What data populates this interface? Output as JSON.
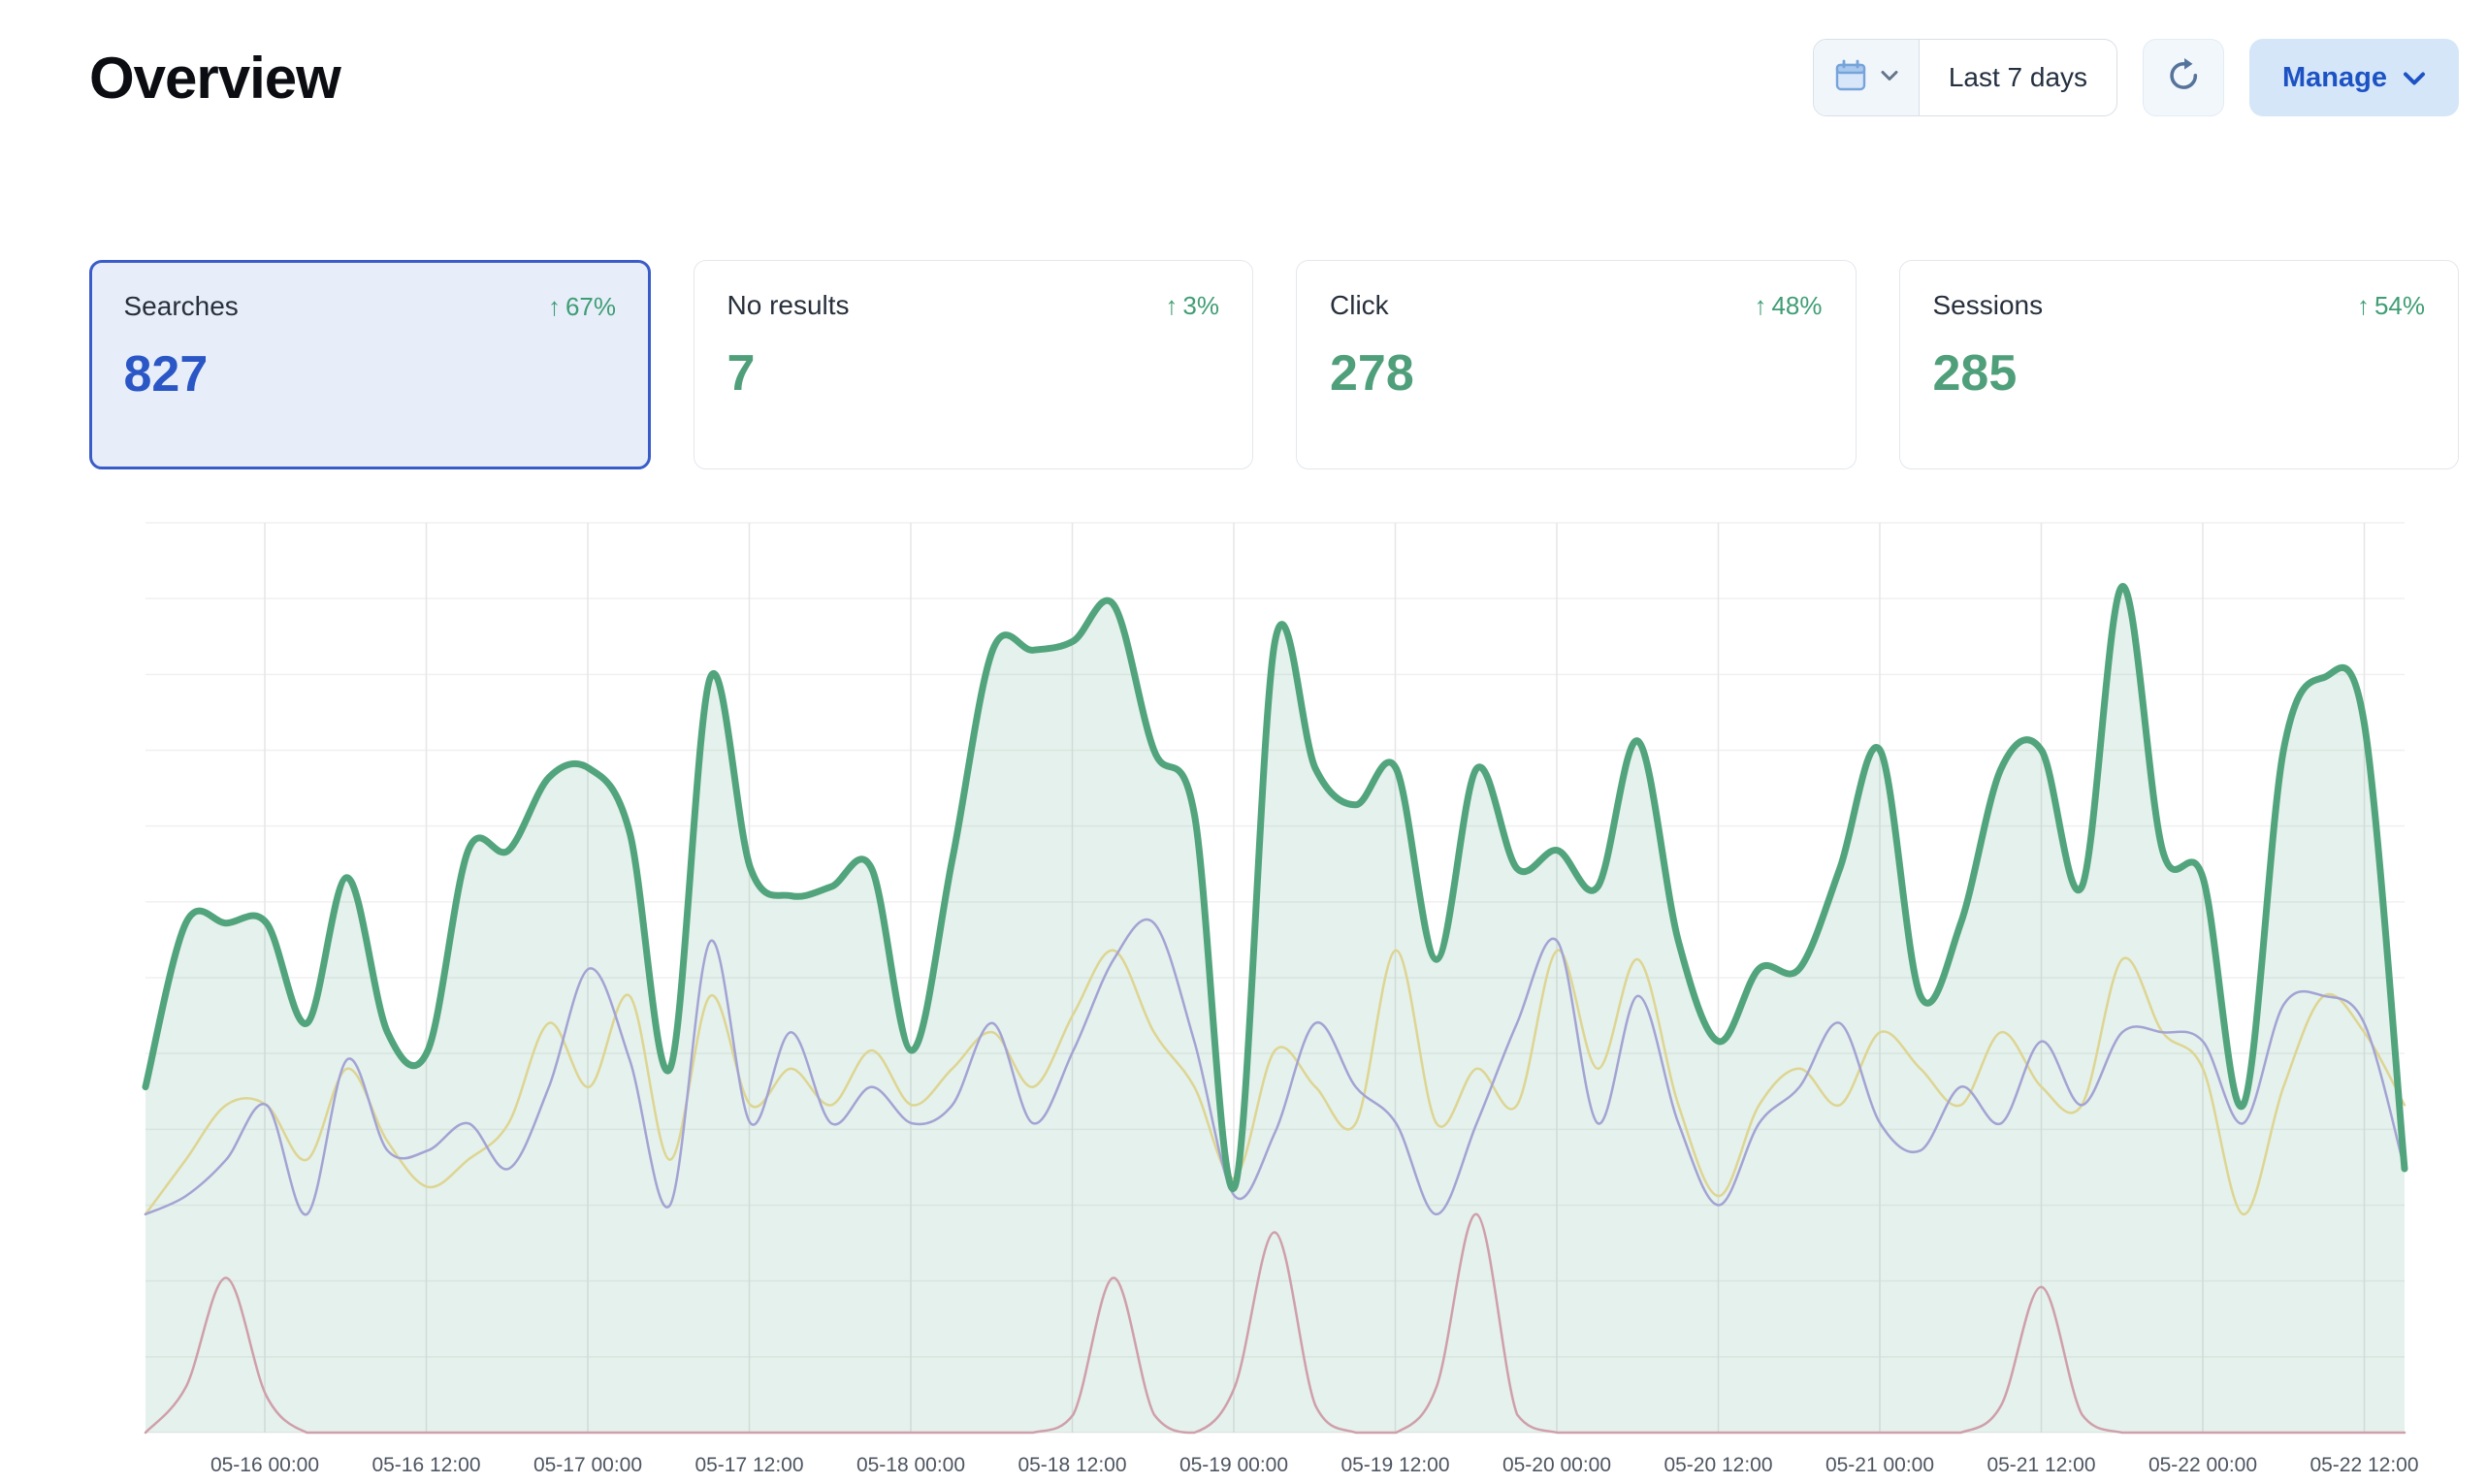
{
  "page": {
    "title": "Overview"
  },
  "toolbar": {
    "date_range": "Last 7 days",
    "manage_label": "Manage"
  },
  "icons": {
    "trend_up": "↑"
  },
  "colors": {
    "accent_blue": "#2a56c6",
    "selected_card_bg": "#e7eefa",
    "selected_card_border": "#3a5cc9",
    "positive_green": "#3f9d74",
    "metric_green": "#4f9f7a",
    "manage_bg": "#d5e6f8",
    "manage_text": "#1d52c4"
  },
  "cards": [
    {
      "label": "Searches",
      "arrow": "↑",
      "delta": "67%",
      "value": "827",
      "selected": true
    },
    {
      "label": "No results",
      "arrow": "↑",
      "delta": "3%",
      "value": "7",
      "selected": false
    },
    {
      "label": "Click",
      "arrow": "↑",
      "delta": "48%",
      "value": "278",
      "selected": false
    },
    {
      "label": "Sessions",
      "arrow": "↑",
      "delta": "54%",
      "value": "285",
      "selected": false
    }
  ],
  "chart_data": {
    "type": "area",
    "title": "",
    "xlabel": "",
    "ylabel": "",
    "ylim": [
      0,
      100
    ],
    "grid": true,
    "legend_position": "none",
    "x_tick_labels": [
      "05-16 00:00",
      "05-16 12:00",
      "05-17 00:00",
      "05-17 12:00",
      "05-18 00:00",
      "05-18 12:00",
      "05-19 00:00",
      "05-19 12:00",
      "05-20 00:00",
      "05-20 12:00",
      "05-21 00:00",
      "05-21 12:00",
      "05-22 00:00",
      "05-22 12:00"
    ],
    "series": [
      {
        "name": "No results",
        "color": "#cf9fab",
        "width": 2.5,
        "values": [
          0,
          5,
          17,
          4,
          0,
          0,
          0,
          0,
          0,
          0,
          0,
          0,
          0,
          0,
          0,
          0,
          0,
          0,
          0,
          0,
          0,
          0,
          0,
          2,
          17,
          2,
          0,
          5,
          22,
          3,
          0,
          0,
          5,
          24,
          2,
          0,
          0,
          0,
          0,
          0,
          0,
          0,
          0,
          0,
          0,
          0,
          3,
          16,
          2,
          0,
          0,
          0,
          0,
          0,
          0,
          0,
          0
        ]
      },
      {
        "name": "Click",
        "color": "#ddd592",
        "width": 2.5,
        "values": [
          24,
          30,
          36,
          36,
          30,
          40,
          32,
          27,
          30,
          34,
          45,
          38,
          48,
          30,
          48,
          36,
          40,
          36,
          42,
          36,
          40,
          44,
          38,
          46,
          53,
          44,
          38,
          28,
          42,
          38,
          34,
          53,
          34,
          40,
          36,
          53,
          40,
          52,
          36,
          26,
          36,
          40,
          36,
          44,
          40,
          36,
          44,
          38,
          36,
          52,
          44,
          40,
          24,
          38,
          48,
          44,
          36
        ]
      },
      {
        "name": "Sessions",
        "color": "#a3a3d4",
        "width": 2.5,
        "values": [
          24,
          26,
          30,
          36,
          24,
          41,
          31,
          31,
          34,
          29,
          38,
          51,
          41,
          25,
          54,
          34,
          44,
          34,
          38,
          34,
          36,
          45,
          34,
          42,
          52,
          56,
          43,
          26,
          33,
          45,
          38,
          34,
          24,
          34,
          45,
          54,
          34,
          48,
          34,
          25,
          34,
          38,
          45,
          34,
          31,
          38,
          34,
          43,
          36,
          44,
          44,
          43,
          34,
          47,
          48,
          45,
          29
        ]
      },
      {
        "name": "Searches",
        "color": "#52a47d",
        "width": 7,
        "fill": "rgba(82,164,125,0.15)",
        "values": [
          38,
          56,
          56,
          56,
          45,
          61,
          44,
          42,
          64,
          64,
          72,
          73,
          66,
          40,
          83,
          62,
          59,
          60,
          62,
          42,
          63,
          86,
          86,
          87,
          91,
          75,
          68,
          27,
          87,
          73,
          69,
          73,
          52,
          73,
          62,
          64,
          60,
          76,
          54,
          43,
          51,
          51,
          62,
          75,
          48,
          56,
          73,
          75,
          60,
          93,
          64,
          61,
          36,
          75,
          83,
          78,
          29
        ]
      }
    ]
  }
}
